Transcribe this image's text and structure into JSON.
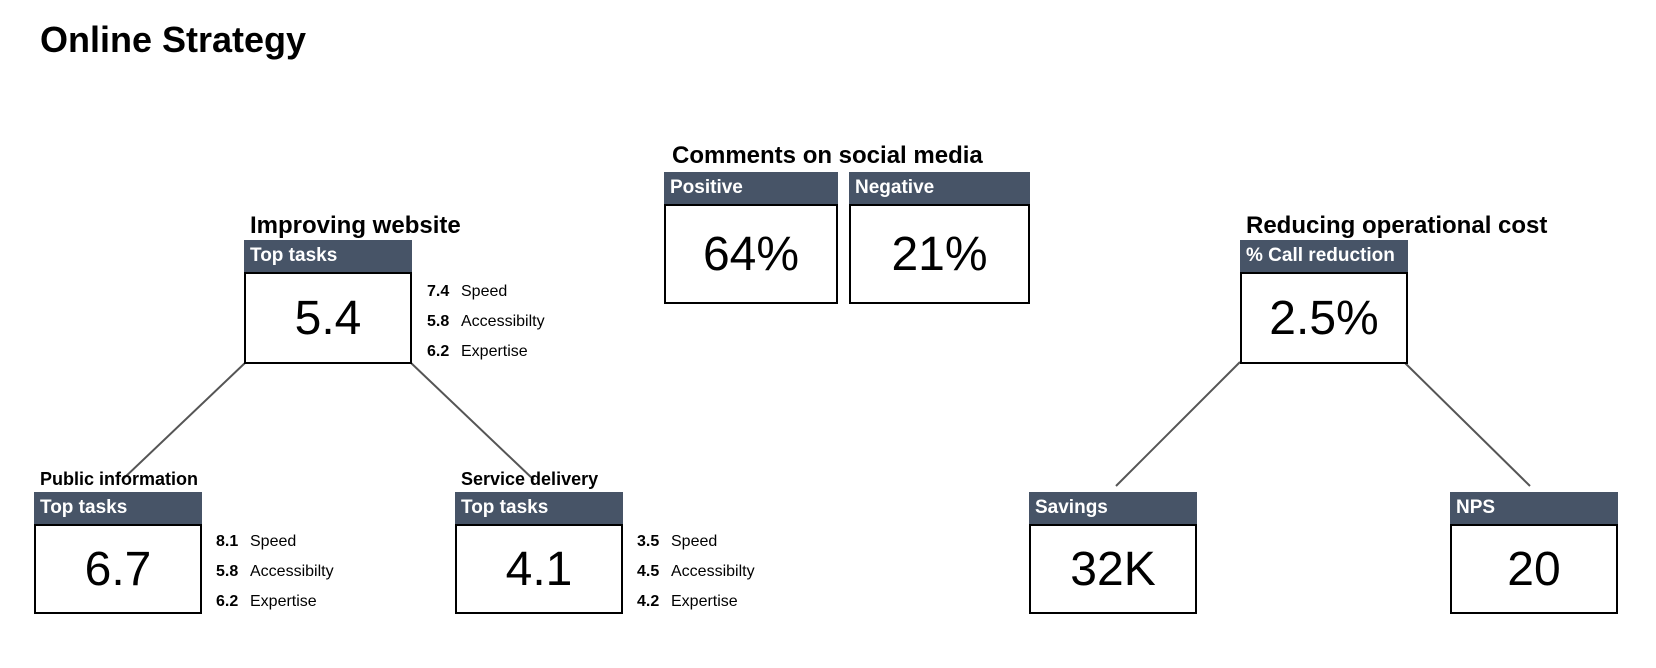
{
  "title": "Online Strategy",
  "social": {
    "title": "Comments on social media",
    "positive": {
      "label": "Positive",
      "value": "64%"
    },
    "negative": {
      "label": "Negative",
      "value": "21%"
    }
  },
  "website": {
    "title": "Improving website",
    "main": {
      "label": "Top tasks",
      "value": "5.4",
      "metrics": [
        {
          "score": "7.4",
          "name": "Speed"
        },
        {
          "score": "5.8",
          "name": "Accessibilty"
        },
        {
          "score": "6.2",
          "name": "Expertise"
        }
      ]
    },
    "public": {
      "title": "Public information",
      "label": "Top tasks",
      "value": "6.7",
      "metrics": [
        {
          "score": "8.1",
          "name": "Speed"
        },
        {
          "score": "5.8",
          "name": "Accessibilty"
        },
        {
          "score": "6.2",
          "name": "Expertise"
        }
      ]
    },
    "service": {
      "title": "Service delivery",
      "label": "Top tasks",
      "value": "4.1",
      "metrics": [
        {
          "score": "3.5",
          "name": "Speed"
        },
        {
          "score": "4.5",
          "name": "Accessibilty"
        },
        {
          "score": "4.2",
          "name": "Expertise"
        }
      ]
    }
  },
  "cost": {
    "title": "Reducing operational cost",
    "main": {
      "label": "% Call reduction",
      "value": "2.5%"
    },
    "savings": {
      "label": "Savings",
      "value": "32K"
    },
    "nps": {
      "label": "NPS",
      "value": "20"
    }
  },
  "colors": {
    "header": "#475467",
    "border": "#000000",
    "connector": "#555555"
  }
}
